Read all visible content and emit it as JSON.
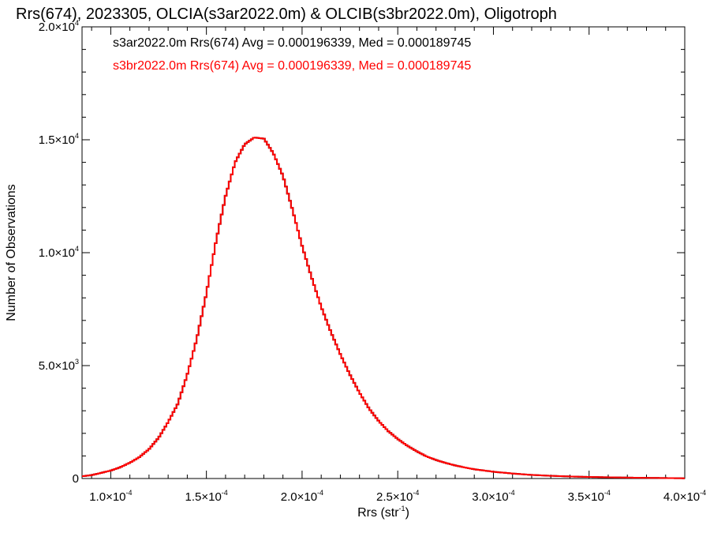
{
  "chart_data": {
    "type": "line",
    "title": "Rrs(674), 2023305, OLCIA(s3ar2022.0m) & OLCIB(s3br2022.0m), Oligotroph",
    "xlabel": {
      "base": "Rrs (str",
      "sup": "-1",
      "close": ")"
    },
    "ylabel": "Number of Observations",
    "xlim": [
      8.5e-05,
      0.0004
    ],
    "ylim": [
      0,
      20000
    ],
    "x_ticks": [
      {
        "value": 0.0001,
        "mant": "1.0×10",
        "exp": "-4"
      },
      {
        "value": 0.00015,
        "mant": "1.5×10",
        "exp": "-4"
      },
      {
        "value": 0.0002,
        "mant": "2.0×10",
        "exp": "-4"
      },
      {
        "value": 0.00025,
        "mant": "2.5×10",
        "exp": "-4"
      },
      {
        "value": 0.0003,
        "mant": "3.0×10",
        "exp": "-4"
      },
      {
        "value": 0.00035,
        "mant": "3.5×10",
        "exp": "-4"
      },
      {
        "value": 0.0004,
        "mant": "4.0×10",
        "exp": "-4"
      }
    ],
    "y_ticks": [
      {
        "value": 0,
        "mant": "0",
        "exp": ""
      },
      {
        "value": 5000,
        "mant": "5.0×10",
        "exp": "3"
      },
      {
        "value": 10000,
        "mant": "1.0×10",
        "exp": "4"
      },
      {
        "value": 15000,
        "mant": "1.5×10",
        "exp": "4"
      },
      {
        "value": 20000,
        "mant": "2.0×10",
        "exp": "4"
      }
    ],
    "series": [
      {
        "name": "s3ar2022.0m",
        "legend": "s3ar2022.0m Rrs(674) Avg = 0.000196339, Med = 0.000189745",
        "color": "#000000",
        "x": [
          8.5e-05,
          9e-05,
          9.5e-05,
          0.0001,
          0.000105,
          0.00011,
          0.000115,
          0.00012,
          0.000125,
          0.00013,
          0.000135,
          0.00014,
          0.000145,
          0.00015,
          0.000155,
          0.00016,
          0.000165,
          0.00017,
          0.000175,
          0.00018,
          0.000182,
          0.000185,
          0.00019,
          0.000195,
          0.0002,
          0.000205,
          0.00021,
          0.000215,
          0.00022,
          0.000225,
          0.00023,
          0.000235,
          0.00024,
          0.000245,
          0.00025,
          0.000255,
          0.00026,
          0.000265,
          0.00027,
          0.000275,
          0.00028,
          0.000285,
          0.00029,
          0.0003,
          0.00031,
          0.00032,
          0.00033,
          0.00034,
          0.00035,
          0.00036,
          0.00037,
          0.00038,
          0.00039,
          0.0004
        ],
        "y": [
          100,
          150,
          250,
          350,
          500,
          700,
          950,
          1300,
          1800,
          2500,
          3300,
          4600,
          6200,
          8200,
          10500,
          12500,
          14000,
          14800,
          15100,
          15050,
          14800,
          14400,
          13400,
          11900,
          10300,
          8900,
          7600,
          6500,
          5500,
          4600,
          3800,
          3100,
          2550,
          2100,
          1750,
          1450,
          1200,
          980,
          820,
          690,
          580,
          490,
          410,
          300,
          220,
          160,
          120,
          90,
          70,
          55,
          40,
          30,
          20,
          10
        ]
      },
      {
        "name": "s3br2022.0m",
        "legend": "s3br2022.0m Rrs(674) Avg = 0.000196339, Med = 0.000189745",
        "color": "#ff0000",
        "x": [
          8.5e-05,
          9e-05,
          9.5e-05,
          0.0001,
          0.000105,
          0.00011,
          0.000115,
          0.00012,
          0.000125,
          0.00013,
          0.000135,
          0.00014,
          0.000145,
          0.00015,
          0.000155,
          0.00016,
          0.000165,
          0.00017,
          0.000175,
          0.00018,
          0.000182,
          0.000185,
          0.00019,
          0.000195,
          0.0002,
          0.000205,
          0.00021,
          0.000215,
          0.00022,
          0.000225,
          0.00023,
          0.000235,
          0.00024,
          0.000245,
          0.00025,
          0.000255,
          0.00026,
          0.000265,
          0.00027,
          0.000275,
          0.00028,
          0.000285,
          0.00029,
          0.0003,
          0.00031,
          0.00032,
          0.00033,
          0.00034,
          0.00035,
          0.00036,
          0.00037,
          0.00038,
          0.00039,
          0.0004
        ],
        "y": [
          100,
          150,
          250,
          350,
          500,
          700,
          950,
          1300,
          1800,
          2500,
          3300,
          4600,
          6200,
          8200,
          10500,
          12500,
          14000,
          14800,
          15100,
          15050,
          14800,
          14400,
          13400,
          11900,
          10300,
          8900,
          7600,
          6500,
          5500,
          4600,
          3800,
          3100,
          2550,
          2100,
          1750,
          1450,
          1200,
          980,
          820,
          690,
          580,
          490,
          410,
          300,
          220,
          160,
          120,
          90,
          70,
          55,
          40,
          30,
          20,
          10
        ]
      }
    ],
    "grid": false,
    "legend_position": "top-left"
  }
}
